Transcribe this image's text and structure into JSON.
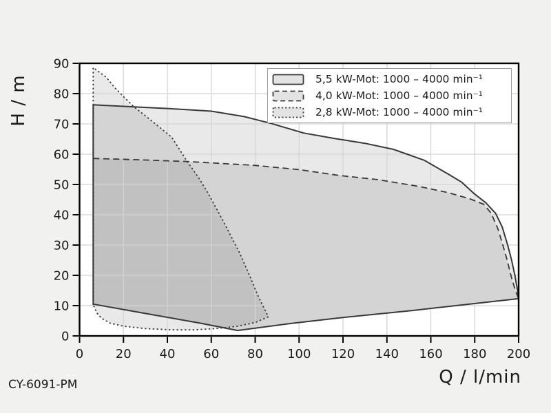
{
  "page": {
    "background": "#f1f1ef",
    "text_color": "#1a1a1a"
  },
  "footer": {
    "model_code": "CY-6091-PM"
  },
  "chart_data": {
    "type": "area",
    "title": "",
    "xlabel": "Q / l/min",
    "ylabel": "H / m",
    "xlim": [
      0,
      200
    ],
    "ylim": [
      0,
      90
    ],
    "xticks": [
      0,
      20,
      40,
      60,
      80,
      100,
      120,
      140,
      160,
      180,
      200
    ],
    "yticks": [
      0,
      10,
      20,
      30,
      40,
      50,
      60,
      70,
      80,
      90
    ],
    "grid": true,
    "legend_position": "top-right",
    "colors": {
      "region_fill": "rgba(0,0,0,0.085)",
      "stroke": "#383838",
      "grid": "#d4d4d4",
      "axis": "#000000",
      "plot_bg": "#ffffff",
      "legend_swatch_fill": "#e3e3e3"
    },
    "series": [
      {
        "id": "5-5kw",
        "name": "5,5 kW-Mot: 1000 – 4000 min⁻¹",
        "line_style": "solid",
        "points": [
          [
            6.2,
            10.5
          ],
          [
            6.2,
            76.3
          ],
          [
            20,
            75.8
          ],
          [
            40,
            75.1
          ],
          [
            60,
            74.2
          ],
          [
            75,
            72.4
          ],
          [
            87,
            70.2
          ],
          [
            102,
            67
          ],
          [
            116,
            65.2
          ],
          [
            130,
            63.6
          ],
          [
            143,
            61.6
          ],
          [
            157,
            58
          ],
          [
            168,
            53.4
          ],
          [
            174,
            50.8
          ],
          [
            180,
            46.8
          ],
          [
            185,
            44
          ],
          [
            189.5,
            40.5
          ],
          [
            192.5,
            36
          ],
          [
            195,
            30
          ],
          [
            196.8,
            25
          ],
          [
            198.3,
            20
          ],
          [
            199.5,
            15
          ],
          [
            200,
            12.3
          ],
          [
            175,
            10.3
          ],
          [
            152,
            8.4
          ],
          [
            120,
            6.1
          ],
          [
            96,
            4.1
          ],
          [
            72,
            1.8
          ],
          [
            55,
            4.2
          ],
          [
            30,
            7.4
          ],
          [
            6.2,
            10.5
          ]
        ]
      },
      {
        "id": "4-0kw",
        "name": "4,0 kW-Mot: 1000 – 4000 min⁻¹",
        "line_style": "dashed",
        "points": [
          [
            6.2,
            10.5
          ],
          [
            6.2,
            58.6
          ],
          [
            25,
            58.2
          ],
          [
            49,
            57.6
          ],
          [
            80,
            56.3
          ],
          [
            100,
            54.9
          ],
          [
            118,
            53
          ],
          [
            136,
            51.6
          ],
          [
            155,
            49.3
          ],
          [
            168,
            47.3
          ],
          [
            178,
            45.2
          ],
          [
            184,
            43.5
          ],
          [
            187.5,
            40.5
          ],
          [
            190.5,
            35.5
          ],
          [
            192.8,
            30
          ],
          [
            194.8,
            25
          ],
          [
            196.5,
            20
          ],
          [
            198.5,
            15
          ],
          [
            200,
            12.3
          ],
          [
            175,
            10.3
          ],
          [
            152,
            8.4
          ],
          [
            120,
            6.1
          ],
          [
            96,
            4.1
          ],
          [
            72,
            1.8
          ],
          [
            55,
            4.2
          ],
          [
            30,
            7.4
          ],
          [
            6.2,
            10.5
          ]
        ],
        "stroke_points": [
          [
            6.2,
            58.6
          ],
          [
            25,
            58.2
          ],
          [
            49,
            57.6
          ],
          [
            80,
            56.3
          ],
          [
            100,
            54.9
          ],
          [
            118,
            53
          ],
          [
            136,
            51.6
          ],
          [
            155,
            49.3
          ],
          [
            168,
            47.3
          ],
          [
            178,
            45.2
          ],
          [
            184,
            43.5
          ],
          [
            187.5,
            40.5
          ],
          [
            190.5,
            35.5
          ],
          [
            192.8,
            30
          ],
          [
            194.8,
            25
          ],
          [
            196.5,
            20
          ],
          [
            198.5,
            15
          ],
          [
            200,
            12.3
          ]
        ]
      },
      {
        "id": "2-8kw",
        "name": "2,8 kW-Mot: 1000 – 4000 min⁻¹",
        "line_style": "dotted",
        "points": [
          [
            6.2,
            10.2
          ],
          [
            6.2,
            88.6
          ],
          [
            12,
            85.5
          ],
          [
            16,
            82
          ],
          [
            20,
            79
          ],
          [
            25,
            75.5
          ],
          [
            32,
            71.5
          ],
          [
            42,
            65.6
          ],
          [
            49,
            57.6
          ],
          [
            54,
            52.5
          ],
          [
            58,
            47.8
          ],
          [
            65,
            38.5
          ],
          [
            73,
            27.3
          ],
          [
            78,
            19
          ],
          [
            81,
            13.7
          ],
          [
            86,
            6.3
          ],
          [
            80,
            4.4
          ],
          [
            72,
            3.2
          ],
          [
            62,
            2.4
          ],
          [
            52,
            2
          ],
          [
            42,
            2
          ],
          [
            30,
            2.4
          ],
          [
            20,
            3.2
          ],
          [
            14,
            4.2
          ],
          [
            10,
            5.8
          ],
          [
            8,
            7.5
          ],
          [
            6.2,
            10.2
          ]
        ]
      }
    ]
  }
}
